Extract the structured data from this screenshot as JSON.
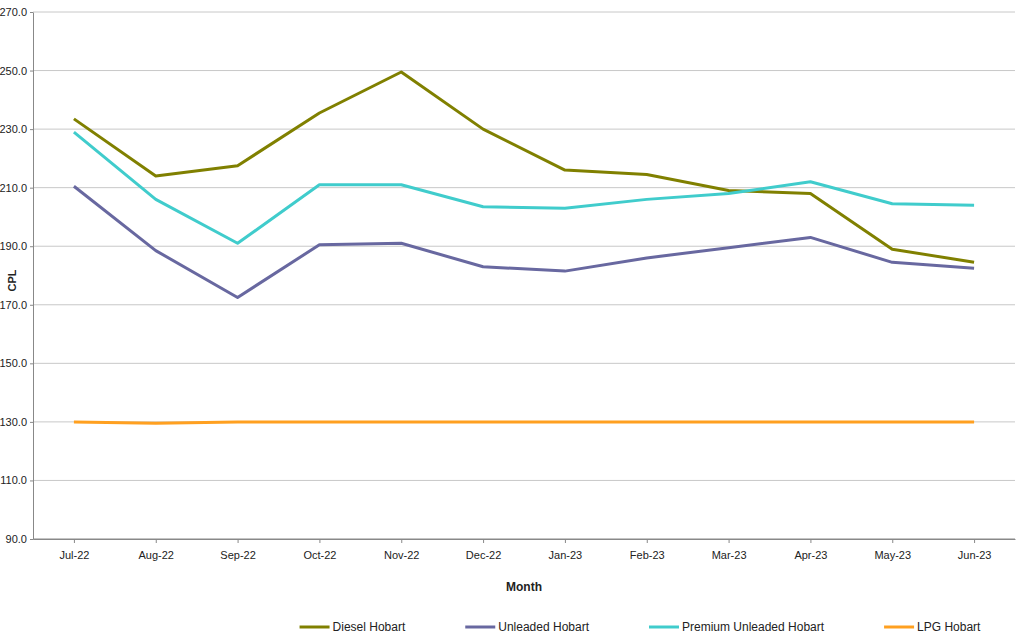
{
  "chart_data": {
    "type": "line",
    "x_label": "Month",
    "y_label": "CPL",
    "categories": [
      "Jul-22",
      "Aug-22",
      "Sep-22",
      "Oct-22",
      "Nov-22",
      "Dec-22",
      "Jan-23",
      "Feb-23",
      "Mar-23",
      "Apr-23",
      "May-23",
      "Jun-23"
    ],
    "series": [
      {
        "name": "Diesel Hobart",
        "color": "#808000",
        "values": [
          233.5,
          214.0,
          217.5,
          235.5,
          249.5,
          230.0,
          216.0,
          214.5,
          209.0,
          208.0,
          189.0,
          184.5
        ]
      },
      {
        "name": "Unleaded Hobart",
        "color": "#6868a0",
        "values": [
          210.5,
          188.5,
          172.5,
          190.5,
          191.0,
          183.0,
          181.5,
          186.0,
          189.5,
          193.0,
          184.5,
          182.5
        ]
      },
      {
        "name": "Premium Unleaded Hobart",
        "color": "#40cccc",
        "values": [
          229.0,
          206.0,
          191.0,
          211.0,
          211.0,
          203.5,
          203.0,
          206.0,
          208.0,
          212.0,
          204.5,
          204.0
        ]
      },
      {
        "name": "LPG Hobart",
        "color": "#ffa020",
        "values": [
          130.0,
          129.5,
          130.0,
          130.0,
          130.0,
          130.0,
          130.0,
          130.0,
          130.0,
          130.0,
          130.0,
          130.0
        ]
      }
    ],
    "ylim": [
      90,
      270
    ],
    "yticks": [
      {
        "value": 90,
        "label": "90.0"
      },
      {
        "value": 110,
        "label": "110.0"
      },
      {
        "value": 130,
        "label": "130.0"
      },
      {
        "value": 150,
        "label": "150.0"
      },
      {
        "value": 170,
        "label": "170.0"
      },
      {
        "value": 190,
        "label": "190.0"
      },
      {
        "value": 210,
        "label": "210.0"
      },
      {
        "value": 230,
        "label": "230.0"
      },
      {
        "value": 250,
        "label": "250.0"
      },
      {
        "value": 270,
        "label": "270.0"
      }
    ],
    "grid": true,
    "legend": "bottom"
  }
}
